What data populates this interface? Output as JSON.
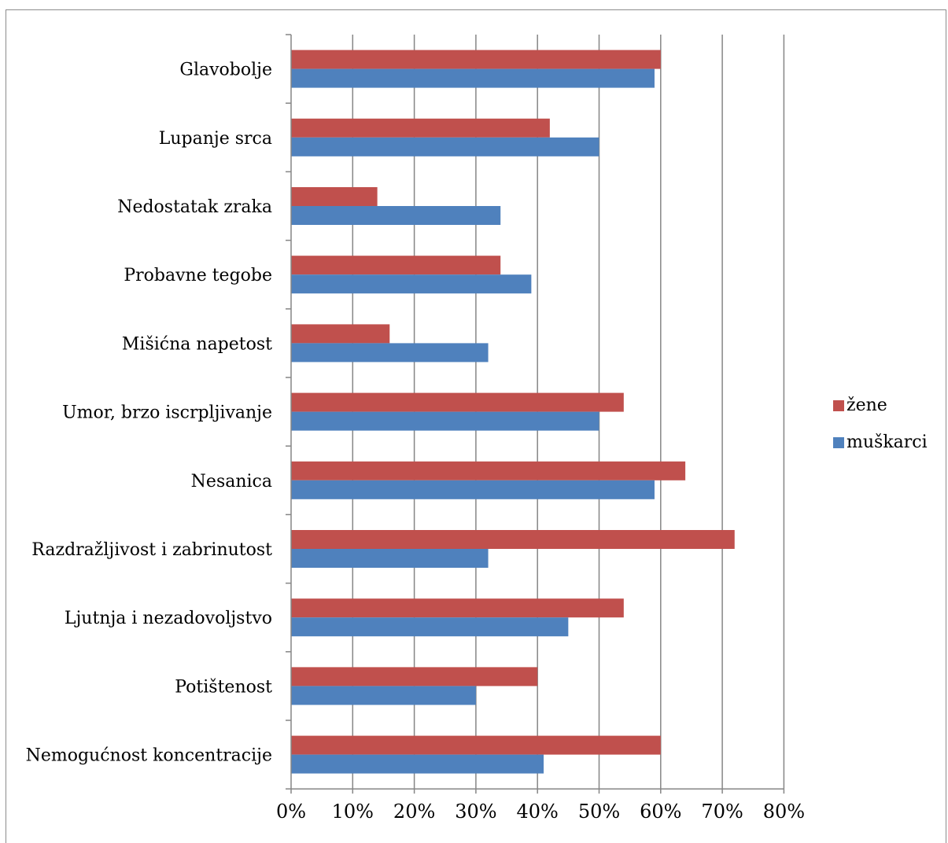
{
  "chart_data": {
    "type": "bar",
    "orientation": "horizontal",
    "title": "",
    "xlabel": "",
    "ylabel": "",
    "xlim": [
      0,
      80
    ],
    "xticks": [
      "0%",
      "10%",
      "20%",
      "30%",
      "40%",
      "50%",
      "60%",
      "70%",
      "80%"
    ],
    "categories": [
      "Glavobolje",
      "Lupanje srca",
      "Nedostatak zraka",
      "Probavne tegobe",
      "Mišićna napetost",
      "Umor, brzo iscrpljivanje",
      "Nesanica",
      "Razdražljivost i zabrinutost",
      "Ljutnja i nezadovoljstvo",
      "Potištenost",
      "Nemogućnost koncentracije"
    ],
    "series": [
      {
        "name": "žene",
        "color": "#c0504d",
        "values": [
          60,
          42,
          14,
          34,
          16,
          54,
          64,
          72,
          54,
          40,
          60
        ]
      },
      {
        "name": "muškarci",
        "color": "#4f81bd",
        "values": [
          59,
          50,
          34,
          39,
          32,
          50,
          59,
          32,
          45,
          30,
          41
        ]
      }
    ],
    "grid": "vertical",
    "legend": "right"
  }
}
